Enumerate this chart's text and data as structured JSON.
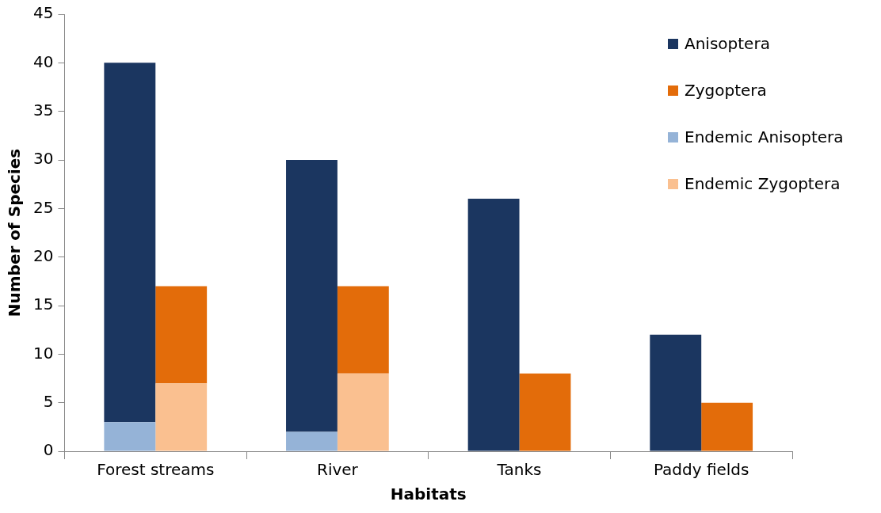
{
  "chart_data": {
    "type": "bar",
    "xlabel": "Habitats",
    "ylabel": "Number of Species",
    "categories": [
      "Forest streams",
      "River",
      "Tanks",
      "Paddy fields"
    ],
    "series": [
      {
        "name": "Endemic Anisoptera",
        "color": "#95b3d7",
        "values": [
          3,
          2,
          null,
          null
        ],
        "base": [
          0,
          0,
          null,
          null
        ]
      },
      {
        "name": "Endemic Zygoptera",
        "color": "#fac090",
        "values": [
          7,
          8,
          null,
          null
        ],
        "base": [
          0,
          0,
          null,
          null
        ]
      },
      {
        "name": "Anisoptera",
        "color": "#1b3660",
        "values": [
          37,
          28,
          26,
          12
        ],
        "base": [
          3,
          2,
          0,
          0
        ]
      },
      {
        "name": "Zygoptera",
        "color": "#e36c0a",
        "values": [
          10,
          9,
          8,
          5
        ],
        "base": [
          7,
          8,
          0,
          0
        ]
      }
    ],
    "ylim": [
      0,
      45
    ],
    "yticks": [
      0,
      5,
      10,
      15,
      20,
      25,
      30,
      35,
      40,
      45
    ],
    "grid": false,
    "legend": "top right"
  }
}
